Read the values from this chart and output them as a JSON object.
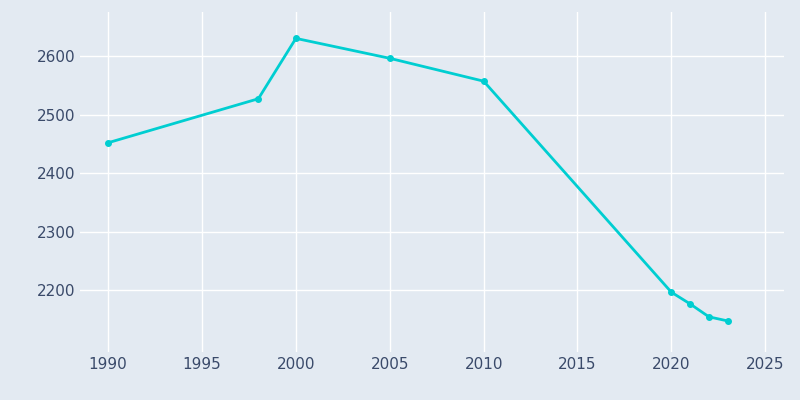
{
  "years": [
    1990,
    1998,
    2000,
    2005,
    2010,
    2020,
    2021,
    2022,
    2023
  ],
  "population": [
    2452,
    2527,
    2630,
    2596,
    2557,
    2197,
    2177,
    2155,
    2148
  ],
  "line_color": "#00CED1",
  "marker_color": "#00CED1",
  "background_color": "#E3EAF2",
  "grid_color": "#FFFFFF",
  "text_color": "#3A4A6A",
  "xlim": [
    1988.5,
    2026
  ],
  "ylim": [
    2095,
    2675
  ],
  "xticks": [
    1990,
    1995,
    2000,
    2005,
    2010,
    2015,
    2020,
    2025
  ],
  "yticks": [
    2200,
    2300,
    2400,
    2500,
    2600
  ],
  "line_width": 2.0,
  "marker_size": 4
}
